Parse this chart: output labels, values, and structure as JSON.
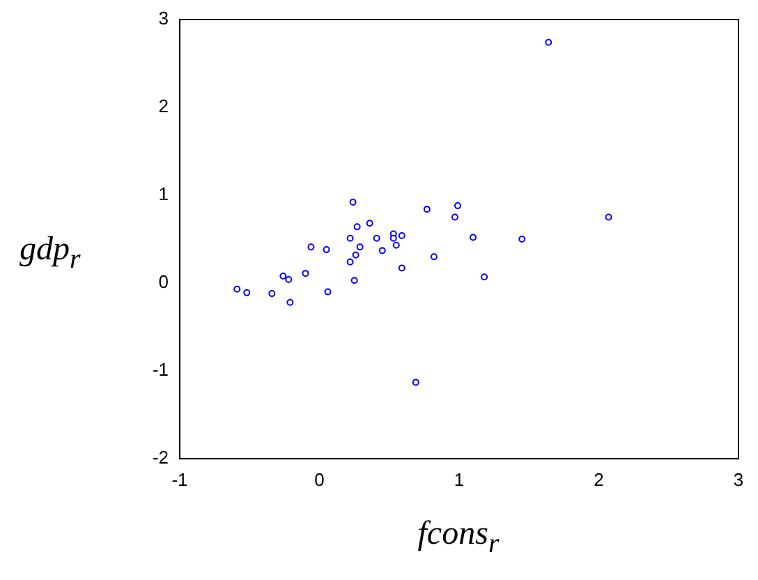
{
  "chart_data": {
    "type": "scatter",
    "xlabel": "fcons$_{r}$",
    "ylabel": "gdp$_{r}$",
    "x": [
      -0.59,
      -0.52,
      -0.34,
      -0.21,
      -0.26,
      -0.22,
      -0.1,
      -0.06,
      0.05,
      0.06,
      0.24,
      0.27,
      0.22,
      0.29,
      0.26,
      0.22,
      0.25,
      0.36,
      0.41,
      0.45,
      0.53,
      0.53,
      0.59,
      0.55,
      0.59,
      0.77,
      0.99,
      0.97,
      0.82,
      1.1,
      1.18,
      1.64,
      2.07,
      1.45,
      0.69
    ],
    "series": [
      {
        "color": "#0000ff",
        "values": [
          -0.07,
          -0.11,
          -0.12,
          -0.22,
          0.08,
          0.04,
          0.11,
          0.41,
          0.38,
          -0.1,
          0.92,
          0.64,
          0.51,
          0.41,
          0.32,
          0.24,
          0.03,
          0.68,
          0.51,
          0.37,
          0.56,
          0.51,
          0.54,
          0.43,
          0.17,
          0.84,
          0.88,
          0.75,
          0.3,
          0.52,
          0.07,
          2.74,
          0.75,
          0.5,
          -1.13
        ]
      }
    ],
    "xlim": [
      -1,
      3
    ],
    "xticks": [
      -1,
      0,
      1,
      2,
      3
    ],
    "ylim": [
      -2,
      3
    ],
    "yticks": [
      -2,
      -1,
      0,
      1,
      2,
      3
    ],
    "marker": "circle",
    "grid": false,
    "legend": false
  }
}
